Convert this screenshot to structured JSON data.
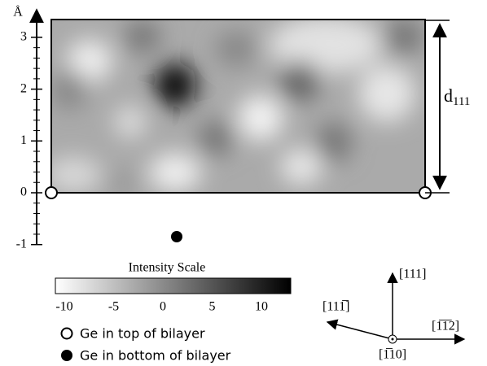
{
  "axis": {
    "unit": "Å",
    "ticks": [
      -1,
      0,
      1,
      2,
      3
    ]
  },
  "d_label": {
    "main": "d",
    "sub": "111"
  },
  "colorbar": {
    "title": "Intensity Scale",
    "ticks": [
      -10,
      -5,
      0,
      5,
      10
    ]
  },
  "legend": [
    "Ge in top of bilayer",
    "Ge in bottom of bilayer"
  ],
  "directions": {
    "up": "[111]",
    "right": "[1̅1̅2]",
    "left": "[111̅]",
    "out": "[1̅10]"
  }
}
